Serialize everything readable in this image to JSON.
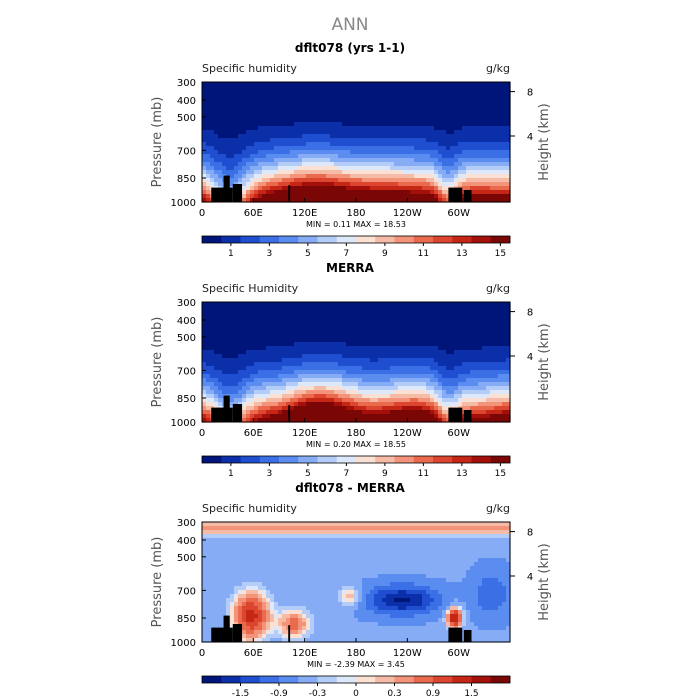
{
  "figure_title": "ANN",
  "chart_data": [
    {
      "type": "heatmap",
      "title": "dflt078 (yrs 1-1)",
      "left_label": "Specific humidity",
      "right_label": "g/kg",
      "xlabel": "",
      "ylabel": "Pressure (mb)",
      "ylabel_right": "Height (km)",
      "x_ticks": [
        "0",
        "60E",
        "120E",
        "180",
        "120W",
        "60W"
      ],
      "y_ticks": [
        "300",
        "400",
        "500",
        "700",
        "850",
        "1000"
      ],
      "height_ticks": [
        "8",
        "4"
      ],
      "stats": "MIN =    0.11   MAX =   18.53",
      "colorbar_levels": [
        "1",
        "3",
        "5",
        "7",
        "9",
        "11",
        "13",
        "15"
      ],
      "colorbar_colors": [
        "#00157a",
        "#0a2fa8",
        "#1f4fd0",
        "#3a6fe6",
        "#5b8cf0",
        "#85acf5",
        "#b3cdf8",
        "#dde8fa",
        "#fbe0d4",
        "#f6bba6",
        "#f2937a",
        "#ea6a4e",
        "#dc4530",
        "#c52616",
        "#a30f0a",
        "#7a0606"
      ],
      "field": "humidity"
    },
    {
      "type": "heatmap",
      "title": "MERRA",
      "left_label": "Specific Humidity",
      "right_label": "g/kg",
      "xlabel": "",
      "ylabel": "Pressure (mb)",
      "ylabel_right": "Height (km)",
      "x_ticks": [
        "0",
        "60E",
        "120E",
        "180",
        "120W",
        "60W"
      ],
      "y_ticks": [
        "300",
        "400",
        "500",
        "700",
        "850",
        "1000"
      ],
      "height_ticks": [
        "8",
        "4"
      ],
      "stats": "MIN =    0.20   MAX =   18.55",
      "colorbar_levels": [
        "1",
        "3",
        "5",
        "7",
        "9",
        "11",
        "13",
        "15"
      ],
      "colorbar_colors": [
        "#00157a",
        "#0a2fa8",
        "#1f4fd0",
        "#3a6fe6",
        "#5b8cf0",
        "#85acf5",
        "#b3cdf8",
        "#dde8fa",
        "#fbe0d4",
        "#f6bba6",
        "#f2937a",
        "#ea6a4e",
        "#dc4530",
        "#c52616",
        "#a30f0a",
        "#7a0606"
      ],
      "field": "humidity"
    },
    {
      "type": "heatmap",
      "title": "dflt078 - MERRA",
      "left_label": "Specific humidity",
      "right_label": "g/kg",
      "xlabel": "",
      "ylabel": "Pressure (mb)",
      "ylabel_right": "Height (km)",
      "x_ticks": [
        "0",
        "60E",
        "120E",
        "180",
        "120W",
        "60W"
      ],
      "y_ticks": [
        "300",
        "400",
        "500",
        "700",
        "850",
        "1000"
      ],
      "height_ticks": [
        "8",
        "4"
      ],
      "stats": "MIN =  -2.39   MAX =    3.45",
      "colorbar_levels": [
        "-1.5",
        "-0.9",
        "-0.3",
        "0",
        "0.3",
        "0.9",
        "1.5"
      ],
      "colorbar_colors": [
        "#00157a",
        "#0a2fa8",
        "#1f4fd0",
        "#3a6fe6",
        "#5b8cf0",
        "#85acf5",
        "#b3cdf8",
        "#dde8fa",
        "#fbe0d4",
        "#f6bba6",
        "#f2937a",
        "#ea6a4e",
        "#dc4530",
        "#c52616",
        "#a30f0a",
        "#7a0606"
      ],
      "field": "difference"
    }
  ]
}
